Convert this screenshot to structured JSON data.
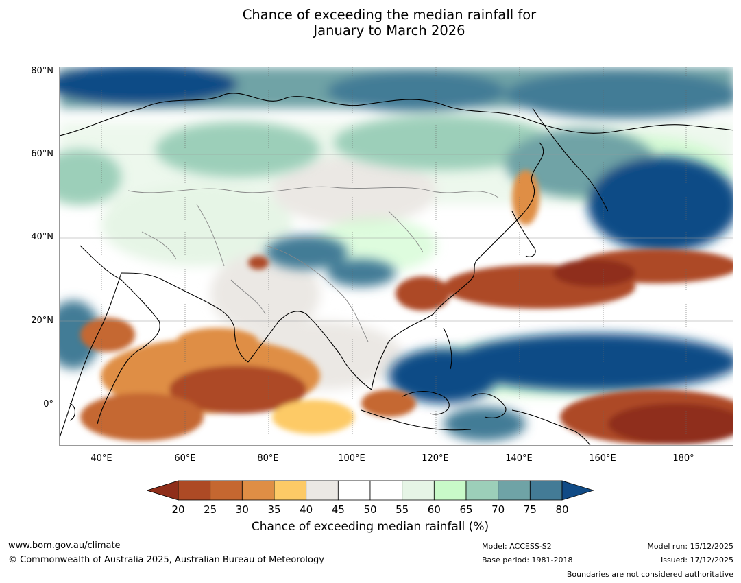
{
  "title_lines": [
    "Chance of exceeding the median rainfall for",
    "January to March 2026"
  ],
  "map": {
    "lat_labels": [
      "80°N",
      "60°N",
      "40°N",
      "20°N",
      "0°"
    ],
    "lon_labels": [
      "40°E",
      "60°E",
      "80°E",
      "100°E",
      "120°E",
      "140°E",
      "160°E",
      "180°"
    ],
    "extent": {
      "lon_min": 30,
      "lon_max": 191,
      "lat_min": -10,
      "lat_max": 80
    }
  },
  "legend": {
    "ticks": [
      "20",
      "25",
      "30",
      "35",
      "40",
      "45",
      "50",
      "55",
      "60",
      "65",
      "70",
      "75",
      "80"
    ],
    "colors": [
      "#8f2e1a",
      "#ad4a25",
      "#c56730",
      "#df8e45",
      "#fdca66",
      "#ebe8e4",
      "#ffffff",
      "#ffffff",
      "#e6f5e6",
      "#c8fac8",
      "#9ccfb9",
      "#6fa3a6",
      "#437b96",
      "#114b86"
    ],
    "label": "Chance of exceeding median rainfall (%)"
  },
  "footer": {
    "url": "www.bom.gov.au/climate",
    "copyright": "© Commonwealth of Australia 2025, Australian Bureau of Meteorology",
    "model": "Model: ACCESS-S2",
    "base_period": "Base period: 1981-2018",
    "model_run": "Model run: 15/12/2025",
    "issued": "Issued: 17/12/2025",
    "boundaries_note": "Boundaries are not considered authoritative"
  }
}
